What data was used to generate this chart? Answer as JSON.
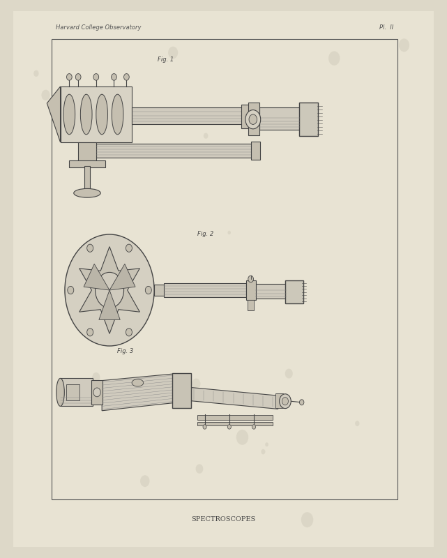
{
  "bg_color": "#ddd8c8",
  "paper_color": "#e8e3d3",
  "border_color": "#555555",
  "drawing_color": "#444444",
  "light_drawing_color": "#888888",
  "title_left": "Harvard College Observatory",
  "title_right": "Pl.  II",
  "caption": "SPECTROSCOPES",
  "fig1_label": "Fig. 1",
  "fig2_label": "Fig. 2",
  "fig3_label": "Fig. 3",
  "border": [
    0.115,
    0.105,
    0.775,
    0.825
  ],
  "fig_width": 6.41,
  "fig_height": 8.0,
  "dpi": 100
}
